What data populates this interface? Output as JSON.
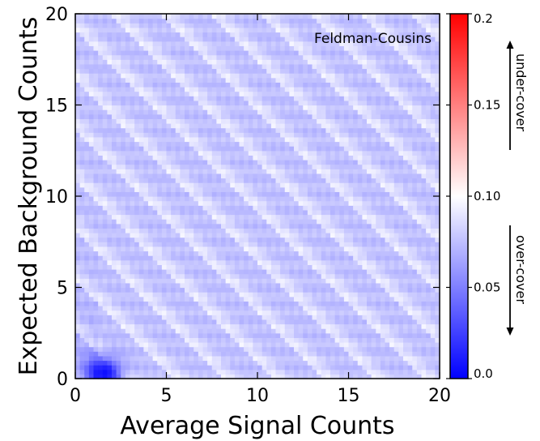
{
  "chart_data": {
    "type": "heatmap",
    "title": "",
    "annotation": "Feldman-Cousins",
    "xlabel": "Average Signal Counts",
    "ylabel": "Expected Background Counts",
    "xlim": [
      0,
      20
    ],
    "ylim": [
      0,
      20
    ],
    "xticks": [
      "0",
      "5",
      "10",
      "15",
      "20"
    ],
    "yticks": [
      "0",
      "5",
      "10",
      "15",
      "20"
    ],
    "x_tick_values": [
      0,
      5,
      10,
      15,
      20
    ],
    "y_tick_values": [
      0,
      5,
      10,
      15,
      20
    ],
    "grid": false,
    "colorscale": {
      "min": 0.0,
      "max": 0.2,
      "center": 0.1,
      "colors": {
        "low": "#0000ff",
        "mid": "#ffffff",
        "high": "#ff0000"
      },
      "tick_values": [
        0.0,
        0.05,
        0.1,
        0.15,
        0.2
      ],
      "tick_labels": [
        "0.0",
        "0.05",
        "0.10",
        "0.15",
        "0.2"
      ],
      "upper_label": "under-cover",
      "lower_label": "over-cover"
    },
    "grid_resolution": [
      80,
      80
    ],
    "pattern": {
      "description_values": "coverage-failure rate, mostly between 0.05 and 0.10, with diagonal bands along s + b = const and strongest over-cover near s≈1.5, b≈0",
      "base_value": 0.083,
      "band_amplitude": 0.016,
      "band_period": 2.75,
      "hotspot": {
        "x": 1.6,
        "y": 0.3,
        "value": 0.005
      }
    }
  }
}
